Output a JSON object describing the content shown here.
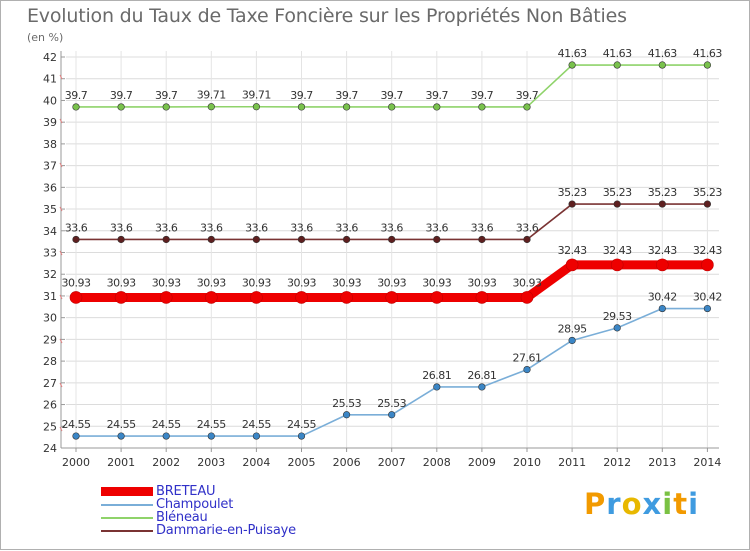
{
  "chart_data": {
    "type": "line",
    "title": "Evolution du Taux de Taxe Foncière sur les Propriétés Non Bâties",
    "ylabel": "(en %)",
    "xlabel": "",
    "ylim": [
      24,
      42
    ],
    "yticks": [
      "24",
      "25",
      "26",
      "27",
      "28",
      "29",
      "30",
      "31",
      "32",
      "33",
      "34",
      "35",
      "36",
      "37",
      "38",
      "39",
      "40",
      "41",
      "42"
    ],
    "categories": [
      "2000",
      "2001",
      "2002",
      "2003",
      "2004",
      "2005",
      "2006",
      "2007",
      "2008",
      "2009",
      "2010",
      "2011",
      "2012",
      "2013",
      "2014"
    ],
    "grid": true,
    "legend_position": "bottom-left",
    "series": [
      {
        "name": "Bléneau",
        "color": "#8fd36a",
        "marker": "#79c24c",
        "values": [
          39.7,
          39.7,
          39.7,
          39.71,
          39.71,
          39.7,
          39.7,
          39.7,
          39.7,
          39.7,
          39.7,
          41.63,
          41.63,
          41.63,
          41.63
        ],
        "labels": [
          "39.7",
          "39.7",
          "39.7",
          "39.71",
          "39.71",
          "39.7",
          "39.7",
          "39.7",
          "39.7",
          "39.7",
          "39.7",
          "41.63",
          "41.63",
          "41.63",
          "41.63"
        ]
      },
      {
        "name": "Dammarie-en-Puisaye",
        "color": "#7a3333",
        "marker": "#5e1f1f",
        "values": [
          33.6,
          33.6,
          33.6,
          33.6,
          33.6,
          33.6,
          33.6,
          33.6,
          33.6,
          33.6,
          33.6,
          35.23,
          35.23,
          35.23,
          35.23
        ],
        "labels": [
          "33.6",
          "33.6",
          "33.6",
          "33.6",
          "33.6",
          "33.6",
          "33.6",
          "33.6",
          "33.6",
          "33.6",
          "33.6",
          "35.23",
          "35.23",
          "35.23",
          "35.23"
        ]
      },
      {
        "name": "BRETEAU",
        "color": "#ee0000",
        "marker": "#ee0000",
        "values": [
          30.93,
          30.93,
          30.93,
          30.93,
          30.93,
          30.93,
          30.93,
          30.93,
          30.93,
          30.93,
          30.93,
          32.43,
          32.43,
          32.43,
          32.43
        ],
        "labels": [
          "30.93",
          "30.93",
          "30.93",
          "30.93",
          "30.93",
          "30.93",
          "30.93",
          "30.93",
          "30.93",
          "30.93",
          "30.93",
          "32.43",
          "32.43",
          "32.43",
          "32.43"
        ]
      },
      {
        "name": "Champoulet",
        "color": "#7aaed8",
        "marker": "#3b86c6",
        "values": [
          24.55,
          24.55,
          24.55,
          24.55,
          24.55,
          24.55,
          25.53,
          25.53,
          26.81,
          26.81,
          27.61,
          28.95,
          29.53,
          30.42,
          30.42
        ],
        "labels": [
          "24.55",
          "24.55",
          "24.55",
          "24.55",
          "24.55",
          "24.55",
          "25.53",
          "25.53",
          "26.81",
          "26.81",
          "27.61",
          "28.95",
          "29.53",
          "30.42",
          "30.42"
        ]
      }
    ],
    "legend": [
      {
        "name": "BRETEAU",
        "color": "#ee0000"
      },
      {
        "name": "Champoulet",
        "color": "#7aaed8"
      },
      {
        "name": "Bléneau",
        "color": "#8fd36a"
      },
      {
        "name": "Dammarie-en-Puisaye",
        "color": "#7a3333"
      }
    ]
  },
  "brand": {
    "letters": [
      "P",
      "r",
      "o",
      "x",
      "i",
      "t",
      "i"
    ],
    "colors": [
      "#f29a00",
      "#3f9be0",
      "#e8b800",
      "#3f9be0",
      "#7ac143",
      "#f29a00",
      "#3f9be0"
    ]
  }
}
